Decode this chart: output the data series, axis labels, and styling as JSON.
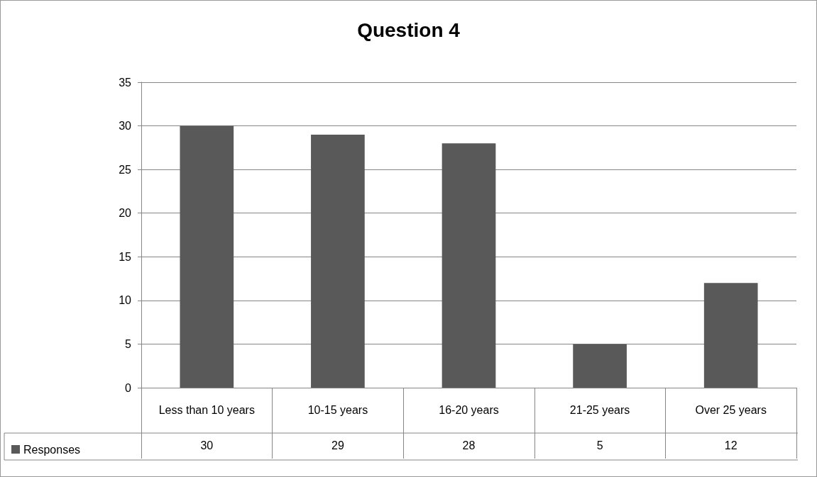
{
  "chart_data": {
    "type": "bar",
    "title": "Question 4",
    "categories": [
      "Less than 10 years",
      "10-15 years",
      "16-20 years",
      "21-25 years",
      "Over 25 years"
    ],
    "series": [
      {
        "name": "Responses",
        "color": "#595959",
        "values": [
          30,
          29,
          28,
          5,
          12
        ]
      }
    ],
    "ylim": [
      0,
      35
    ],
    "yticks": [
      0,
      5,
      10,
      15,
      20,
      25,
      30,
      35
    ],
    "grid": "y",
    "legend": "bottom left",
    "data_labels": true
  }
}
